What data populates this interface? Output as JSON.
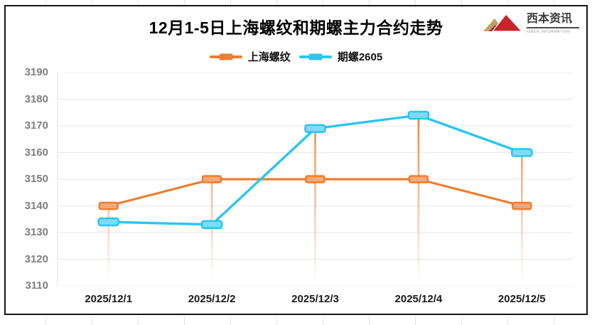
{
  "logo": {
    "name": "西本资讯",
    "subtitle": "XIBEN INFORMATION"
  },
  "chart_data": {
    "type": "line",
    "title": "12月1-5日上海螺纹和期螺主力合约走势",
    "categories": [
      "2025/12/1",
      "2025/12/2",
      "2025/12/3",
      "2025/12/4",
      "2025/12/5"
    ],
    "series": [
      {
        "name": "上海螺纹",
        "color": "#ED7D31",
        "marker_fill": "#F5A978",
        "values": [
          3140,
          3150,
          3150,
          3150,
          3140
        ]
      },
      {
        "name": "期螺2605",
        "color": "#2BC5F2",
        "marker_fill": "#7EDCF7",
        "values": [
          3134,
          3133,
          3169,
          3174,
          3160
        ]
      }
    ],
    "ylim": [
      3110,
      3190
    ],
    "ytick_step": 10,
    "yticks": [
      3190,
      3180,
      3170,
      3160,
      3150,
      3140,
      3130,
      3120,
      3110
    ],
    "grid": true,
    "legend_position": "top",
    "drop_lines": true,
    "colors": {
      "gridline": "#E7E7E7",
      "y_label": "#7F7F7F",
      "x_label": "#1A1A1A",
      "drop_line": "#ED7D31",
      "frame_border": "#141414"
    }
  }
}
